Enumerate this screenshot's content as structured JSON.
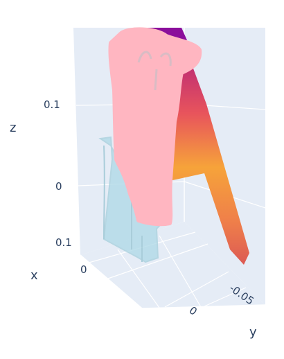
{
  "chart_data": {
    "type": "scatter3d",
    "title": "",
    "axes": {
      "x": {
        "title": "x",
        "ticks": [
          "0.1",
          "0"
        ]
      },
      "y": {
        "title": "y",
        "ticks": [
          "-0.05",
          "0"
        ]
      },
      "z": {
        "title": "z",
        "ticks": [
          "0.1",
          "0"
        ]
      }
    },
    "grid": true,
    "legend": "none",
    "series": [
      {
        "color": "#ffb6c1",
        "opacity": 0.95,
        "depicts": "dense pink point cloud (main object)"
      },
      {
        "color": "#add8e6",
        "opacity": 0.7,
        "depicts": "translucent light-blue point cloud (lower object)"
      },
      {
        "colorscale": [
          "#e8545c",
          "#f6a33a",
          "#8b0f9b",
          "#6a00a8"
        ],
        "depicts": "colour-mapped triangular surface point cloud"
      }
    ],
    "colors": {
      "pane": "#e5ecf6",
      "grid": "#ffffff",
      "text": "#2a3f5f"
    }
  }
}
